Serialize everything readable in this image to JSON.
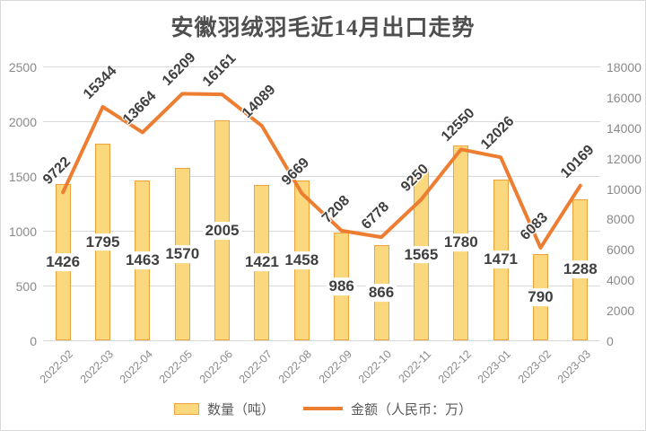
{
  "chart_data": {
    "type": "combo_bar_line",
    "title": "安徽羽绒羽毛近14月出口走势",
    "categories": [
      "2022-02",
      "2022-03",
      "2022-04",
      "2022-05",
      "2022-06",
      "2022-07",
      "2022-08",
      "2022-09",
      "2022-10",
      "2022-11",
      "2022-12",
      "2023-01",
      "2023-02",
      "2023-03"
    ],
    "series": [
      {
        "name": "数量（吨）",
        "type": "bar",
        "axis": "left",
        "values": [
          1426,
          1795,
          1463,
          1570,
          2005,
          1421,
          1458,
          986,
          866,
          1565,
          1780,
          1471,
          790,
          1288
        ]
      },
      {
        "name": "金额（人民币：万）",
        "type": "line",
        "axis": "right",
        "values": [
          9722,
          15344,
          13664,
          16209,
          16161,
          14089,
          9669,
          7208,
          6778,
          9250,
          12550,
          12026,
          6083,
          10169
        ]
      }
    ],
    "left_axis": {
      "min": 0,
      "max": 2500,
      "step": 500,
      "ticks": [
        "0",
        "500",
        "1000",
        "1500",
        "2000",
        "2500"
      ]
    },
    "right_axis": {
      "min": 0,
      "max": 18000,
      "step": 2000,
      "ticks": [
        "0",
        "2000",
        "4000",
        "6000",
        "8000",
        "10000",
        "12000",
        "14000",
        "16000",
        "18000"
      ]
    },
    "legend": {
      "position": "bottom",
      "entries": [
        "数量（吨）",
        "金额（人民币：万）"
      ]
    },
    "grid": "horizontal-major-left-axis",
    "colors": {
      "bar_fill": "#FBD87D",
      "bar_border": "#EDA33B",
      "line": "#ED7D31",
      "value_label_text": "#3F3F3F",
      "axis_text": "#8A8A8A",
      "gridline": "#D9D9D9",
      "title_text": "#4F4F4F",
      "legend_text": "#595959"
    }
  }
}
